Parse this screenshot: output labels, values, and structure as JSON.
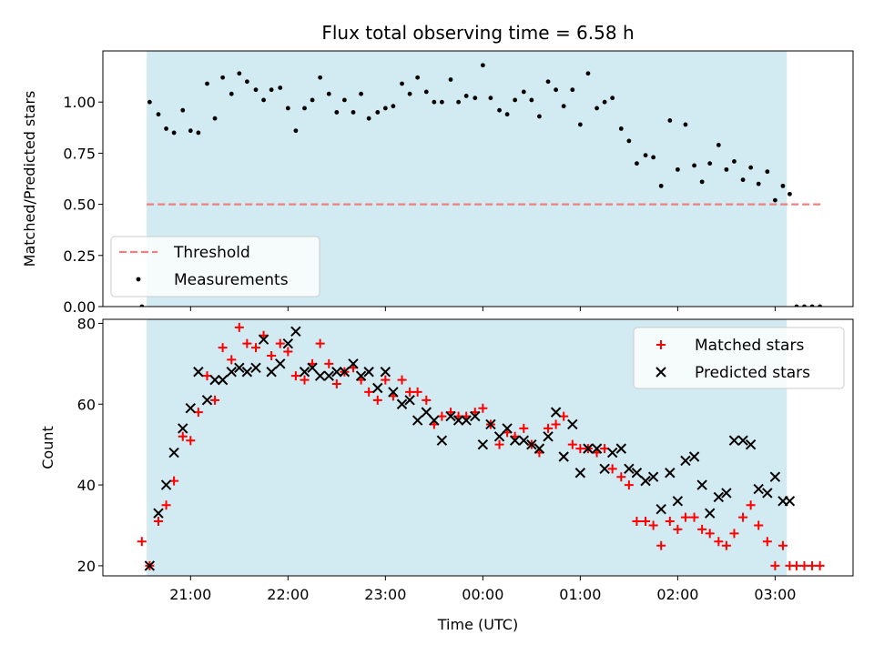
{
  "chart_data": [
    {
      "type": "scatter",
      "title": "Flux total observing time = 6.58 h",
      "ylabel": "Matched/Predicted stars",
      "xlabel": "",
      "x_unit": "time (UTC), hours after midnight of first night; values > 24 wrap past 00:00",
      "xlim": [
        20.1,
        27.8
      ],
      "ylim": [
        0,
        1.25
      ],
      "yticks": [
        "0.00",
        "0.25",
        "0.50",
        "0.75",
        "1.00"
      ],
      "grid": false,
      "legend": "lower-left",
      "shaded_interval": [
        20.55,
        27.12
      ],
      "shade_color": "#add8e6",
      "threshold": {
        "name": "Threshold",
        "value": 0.5,
        "x_range": [
          20.55,
          27.47
        ],
        "color": "#f08080"
      },
      "series": [
        {
          "name": "Measurements",
          "color": "#000000",
          "x": [
            20.5,
            20.58,
            20.67,
            20.75,
            20.83,
            20.92,
            21.0,
            21.08,
            21.17,
            21.25,
            21.33,
            21.42,
            21.5,
            21.58,
            21.67,
            21.75,
            21.83,
            21.92,
            22.0,
            22.08,
            22.17,
            22.25,
            22.33,
            22.42,
            22.5,
            22.58,
            22.67,
            22.75,
            22.83,
            22.92,
            23.0,
            23.08,
            23.17,
            23.25,
            23.33,
            23.42,
            23.5,
            23.58,
            23.67,
            23.75,
            23.83,
            23.92,
            24.0,
            24.08,
            24.17,
            24.25,
            24.33,
            24.42,
            24.5,
            24.58,
            24.67,
            24.75,
            24.83,
            24.92,
            25.0,
            25.08,
            25.17,
            25.25,
            25.33,
            25.42,
            25.5,
            25.58,
            25.67,
            25.75,
            25.83,
            25.92,
            26.0,
            26.08,
            26.17,
            26.25,
            26.33,
            26.42,
            26.5,
            26.58,
            26.67,
            26.75,
            26.83,
            26.92,
            27.0,
            27.08,
            27.15,
            27.22,
            27.3,
            27.38,
            27.46
          ],
          "y": [
            0.0,
            1.0,
            0.94,
            0.87,
            0.85,
            0.96,
            0.86,
            0.85,
            1.09,
            0.92,
            1.12,
            1.04,
            1.14,
            1.1,
            1.06,
            1.01,
            1.06,
            1.07,
            0.97,
            0.86,
            0.97,
            1.01,
            1.12,
            1.04,
            0.95,
            1.01,
            0.95,
            1.04,
            0.92,
            0.95,
            0.97,
            0.98,
            1.09,
            1.04,
            1.12,
            1.05,
            1.0,
            1.0,
            1.11,
            1.0,
            1.03,
            1.02,
            1.18,
            1.02,
            0.96,
            0.94,
            1.01,
            1.05,
            1.01,
            0.93,
            1.1,
            1.06,
            0.98,
            1.06,
            0.89,
            1.14,
            0.97,
            1.0,
            1.02,
            0.87,
            0.81,
            0.7,
            0.74,
            0.73,
            0.59,
            0.91,
            0.67,
            0.89,
            0.69,
            0.61,
            0.7,
            0.79,
            0.67,
            0.71,
            0.62,
            0.68,
            0.6,
            0.66,
            0.52,
            0.59,
            0.55,
            0.0,
            0.0,
            0.0,
            0.0
          ]
        }
      ]
    },
    {
      "type": "scatter",
      "title": "",
      "xlabel": "Time (UTC)",
      "ylabel": "Count",
      "x_unit": "time (UTC), hours after midnight of first night; values > 24 wrap past 00:00",
      "xlim": [
        20.1,
        27.8
      ],
      "ylim": [
        17.5,
        81
      ],
      "yticks": [
        "20",
        "40",
        "60",
        "80"
      ],
      "xticks": [
        {
          "value": 21,
          "label": "21:00"
        },
        {
          "value": 22,
          "label": "22:00"
        },
        {
          "value": 23,
          "label": "23:00"
        },
        {
          "value": 24,
          "label": "00:00"
        },
        {
          "value": 25,
          "label": "01:00"
        },
        {
          "value": 26,
          "label": "02:00"
        },
        {
          "value": 27,
          "label": "03:00"
        }
      ],
      "grid": false,
      "legend": "upper-right",
      "shaded_interval": [
        20.55,
        27.12
      ],
      "shade_color": "#add8e6",
      "series": [
        {
          "name": "Matched stars",
          "marker": "plus",
          "color": "#ff0000",
          "x": [
            20.5,
            20.58,
            20.67,
            20.75,
            20.83,
            20.92,
            21.0,
            21.08,
            21.17,
            21.25,
            21.33,
            21.42,
            21.5,
            21.58,
            21.67,
            21.75,
            21.83,
            21.92,
            22.0,
            22.08,
            22.17,
            22.25,
            22.33,
            22.42,
            22.5,
            22.58,
            22.67,
            22.75,
            22.83,
            22.92,
            23.0,
            23.08,
            23.17,
            23.25,
            23.33,
            23.42,
            23.5,
            23.58,
            23.67,
            23.75,
            23.83,
            23.92,
            24.0,
            24.08,
            24.17,
            24.25,
            24.33,
            24.42,
            24.5,
            24.58,
            24.67,
            24.75,
            24.83,
            24.92,
            25.0,
            25.08,
            25.17,
            25.25,
            25.33,
            25.42,
            25.5,
            25.58,
            25.67,
            25.75,
            25.83,
            25.92,
            26.0,
            26.08,
            26.17,
            26.25,
            26.33,
            26.42,
            26.5,
            26.58,
            26.67,
            26.75,
            26.83,
            26.92,
            27.0,
            27.08,
            27.15,
            27.22,
            27.3,
            27.38,
            27.46
          ],
          "y": [
            26,
            20,
            31,
            35,
            41,
            52,
            51,
            58,
            67,
            61,
            74,
            71,
            79,
            75,
            74,
            77,
            72,
            75,
            73,
            67,
            66,
            70,
            75,
            70,
            65,
            68,
            69,
            66,
            63,
            61,
            66,
            62,
            66,
            63,
            63,
            61,
            55,
            57,
            58,
            57,
            57,
            58,
            59,
            55,
            50,
            53,
            52,
            54,
            50,
            48,
            54,
            55,
            57,
            50,
            49,
            49,
            48,
            49,
            44,
            42,
            40,
            31,
            31,
            30,
            25,
            31,
            29,
            32,
            32,
            29,
            28,
            26,
            25,
            28,
            32,
            35,
            30,
            26,
            20,
            25,
            20,
            20,
            20,
            20,
            20
          ]
        },
        {
          "name": "Predicted stars",
          "marker": "x",
          "color": "#000000",
          "x": [
            20.58,
            20.67,
            20.75,
            20.83,
            20.92,
            21.0,
            21.08,
            21.17,
            21.25,
            21.33,
            21.42,
            21.5,
            21.58,
            21.67,
            21.75,
            21.83,
            21.92,
            22.0,
            22.08,
            22.17,
            22.25,
            22.33,
            22.42,
            22.5,
            22.58,
            22.67,
            22.75,
            22.83,
            22.92,
            23.0,
            23.08,
            23.17,
            23.25,
            23.33,
            23.42,
            23.5,
            23.58,
            23.67,
            23.75,
            23.83,
            23.92,
            24.0,
            24.08,
            24.17,
            24.25,
            24.33,
            24.42,
            24.5,
            24.58,
            24.67,
            24.75,
            24.83,
            24.92,
            25.0,
            25.08,
            25.17,
            25.25,
            25.33,
            25.42,
            25.5,
            25.58,
            25.67,
            25.75,
            25.83,
            25.92,
            26.0,
            26.08,
            26.17,
            26.25,
            26.33,
            26.42,
            26.5,
            26.58,
            26.67,
            26.75,
            26.83,
            26.92,
            27.0,
            27.08,
            27.15
          ],
          "y": [
            20,
            33,
            40,
            48,
            54,
            59,
            68,
            61,
            66,
            66,
            68,
            69,
            68,
            69,
            76,
            68,
            70,
            75,
            78,
            68,
            69,
            67,
            67,
            68,
            68,
            70,
            67,
            68,
            64,
            68,
            63,
            60,
            61,
            56,
            58,
            56,
            51,
            57,
            56,
            56,
            57,
            50,
            55,
            52,
            54,
            51,
            51,
            50,
            49,
            52,
            58,
            47,
            55,
            43,
            49,
            49,
            44,
            48,
            49,
            44,
            43,
            41,
            42,
            34,
            43,
            36,
            46,
            47,
            40,
            33,
            37,
            38,
            51,
            51,
            50,
            39,
            38,
            42,
            36,
            36
          ]
        }
      ]
    }
  ]
}
